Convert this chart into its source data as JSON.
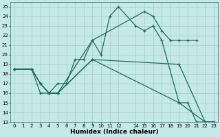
{
  "xlabel": "Humidex (Indice chaleur)",
  "bg_color": "#c5e8e8",
  "line_color": "#1a6b5a",
  "grid_color": "#a8d0d0",
  "xlim": [
    -0.5,
    23.5
  ],
  "ylim": [
    13,
    25.5
  ],
  "xticks": [
    0,
    1,
    2,
    3,
    4,
    5,
    6,
    7,
    8,
    9,
    10,
    11,
    12,
    14,
    15,
    16,
    17,
    18,
    19,
    20,
    21,
    22,
    23
  ],
  "yticks": [
    13,
    14,
    15,
    16,
    17,
    18,
    19,
    20,
    21,
    22,
    23,
    24,
    25
  ],
  "series": [
    {
      "x": [
        0,
        2,
        3,
        4,
        5,
        6,
        7,
        8,
        9,
        10,
        11,
        12,
        14,
        15,
        16,
        17,
        19,
        20,
        21,
        22,
        23
      ],
      "y": [
        18.5,
        18.5,
        17.0,
        16.0,
        17.0,
        17.0,
        19.5,
        19.5,
        21.5,
        20.0,
        24.0,
        25.0,
        23.0,
        22.5,
        23.0,
        21.5,
        15.0,
        15.0,
        13.0,
        13.0,
        13.0
      ]
    },
    {
      "x": [
        0,
        2,
        3,
        4,
        5,
        9,
        15,
        16,
        17,
        18,
        19,
        20,
        21
      ],
      "y": [
        18.5,
        18.5,
        17.0,
        16.0,
        16.0,
        21.5,
        24.5,
        24.0,
        22.5,
        21.5,
        21.5,
        21.5,
        21.5
      ]
    },
    {
      "x": [
        0,
        2,
        3,
        4,
        5,
        9,
        19,
        22,
        23
      ],
      "y": [
        18.5,
        18.5,
        17.0,
        16.0,
        16.0,
        19.5,
        19.0,
        13.0,
        13.0
      ]
    },
    {
      "x": [
        0,
        2,
        3,
        4,
        5,
        9,
        19,
        22,
        23
      ],
      "y": [
        18.5,
        18.5,
        16.0,
        16.0,
        16.0,
        19.5,
        15.0,
        13.0,
        13.0
      ]
    }
  ]
}
